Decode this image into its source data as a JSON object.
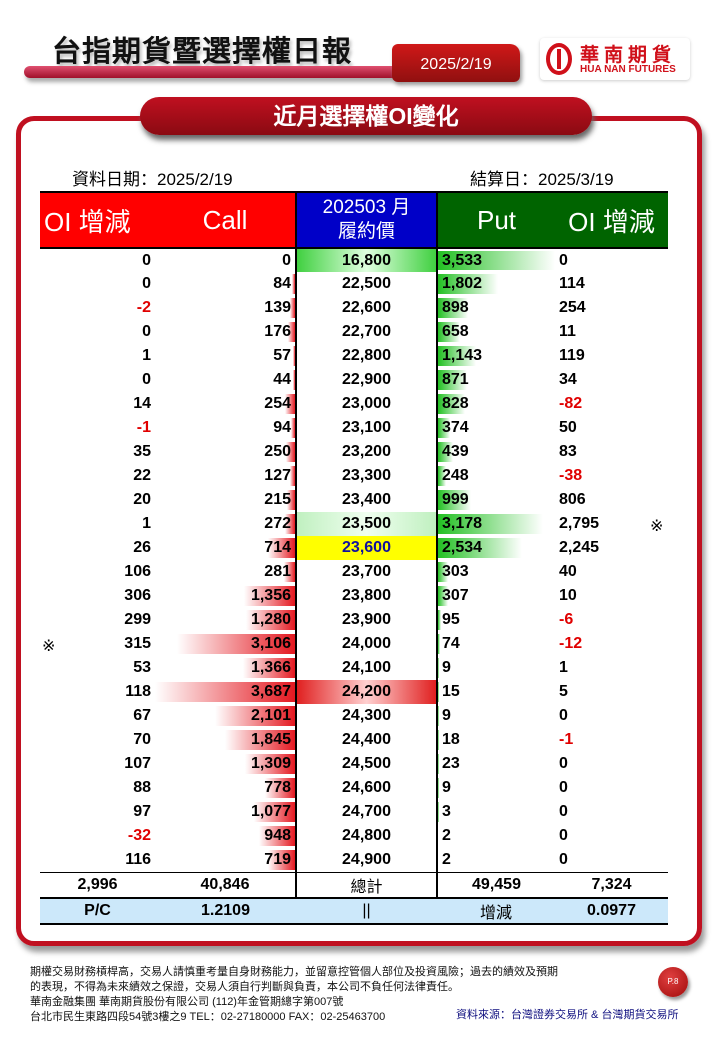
{
  "header": {
    "title": "台指期貨暨選擇權日報",
    "date": "2025/2/19",
    "logo_zh": "華南期貨",
    "logo_en": "HUA NAN FUTURES"
  },
  "section_title": "近月選擇權OI變化",
  "info": {
    "data_date": "資料日期：2025/2/19",
    "settle_date": "結算日：2025/3/19"
  },
  "table": {
    "headers": {
      "call_oi": "OI 增減",
      "call": "Call",
      "strike_1": "202503 月",
      "strike_2": "履約價",
      "put": "Put",
      "put_oi": "OI 增減"
    },
    "rows": [
      {
        "call_oi": "0",
        "call": "0",
        "strike": "16,800",
        "put": "3,533",
        "put_oi": "0",
        "hl": "green"
      },
      {
        "call_oi": "0",
        "call": "84",
        "strike": "22,500",
        "put": "1,802",
        "put_oi": "114"
      },
      {
        "call_oi": "-2",
        "call": "139",
        "strike": "22,600",
        "put": "898",
        "put_oi": "254"
      },
      {
        "call_oi": "0",
        "call": "176",
        "strike": "22,700",
        "put": "658",
        "put_oi": "11"
      },
      {
        "call_oi": "1",
        "call": "57",
        "strike": "22,800",
        "put": "1,143",
        "put_oi": "119"
      },
      {
        "call_oi": "0",
        "call": "44",
        "strike": "22,900",
        "put": "871",
        "put_oi": "34"
      },
      {
        "call_oi": "14",
        "call": "254",
        "strike": "23,000",
        "put": "828",
        "put_oi": "-82"
      },
      {
        "call_oi": "-1",
        "call": "94",
        "strike": "23,100",
        "put": "374",
        "put_oi": "50"
      },
      {
        "call_oi": "35",
        "call": "250",
        "strike": "23,200",
        "put": "439",
        "put_oi": "83"
      },
      {
        "call_oi": "22",
        "call": "127",
        "strike": "23,300",
        "put": "248",
        "put_oi": "-38"
      },
      {
        "call_oi": "20",
        "call": "215",
        "strike": "23,400",
        "put": "999",
        "put_oi": "806"
      },
      {
        "call_oi": "1",
        "call": "272",
        "strike": "23,500",
        "put": "3,178",
        "put_oi": "2,795",
        "hl": "lgreen",
        "mark_right": "※"
      },
      {
        "call_oi": "26",
        "call": "714",
        "strike": "23,600",
        "put": "2,534",
        "put_oi": "2,245",
        "hl": "yellow"
      },
      {
        "call_oi": "106",
        "call": "281",
        "strike": "23,700",
        "put": "303",
        "put_oi": "40"
      },
      {
        "call_oi": "306",
        "call": "1,356",
        "strike": "23,800",
        "put": "307",
        "put_oi": "10"
      },
      {
        "call_oi": "299",
        "call": "1,280",
        "strike": "23,900",
        "put": "95",
        "put_oi": "-6"
      },
      {
        "call_oi": "315",
        "call": "3,106",
        "strike": "24,000",
        "put": "74",
        "put_oi": "-12",
        "mark_left": "※"
      },
      {
        "call_oi": "53",
        "call": "1,366",
        "strike": "24,100",
        "put": "9",
        "put_oi": "1"
      },
      {
        "call_oi": "118",
        "call": "3,687",
        "strike": "24,200",
        "put": "15",
        "put_oi": "5",
        "hl": "red"
      },
      {
        "call_oi": "67",
        "call": "2,101",
        "strike": "24,300",
        "put": "9",
        "put_oi": "0"
      },
      {
        "call_oi": "70",
        "call": "1,845",
        "strike": "24,400",
        "put": "18",
        "put_oi": "-1"
      },
      {
        "call_oi": "107",
        "call": "1,309",
        "strike": "24,500",
        "put": "23",
        "put_oi": "0"
      },
      {
        "call_oi": "88",
        "call": "778",
        "strike": "24,600",
        "put": "9",
        "put_oi": "0"
      },
      {
        "call_oi": "97",
        "call": "1,077",
        "strike": "24,700",
        "put": "3",
        "put_oi": "0"
      },
      {
        "call_oi": "-32",
        "call": "948",
        "strike": "24,800",
        "put": "2",
        "put_oi": "0"
      },
      {
        "call_oi": "116",
        "call": "719",
        "strike": "24,900",
        "put": "2",
        "put_oi": "0"
      }
    ],
    "totals": {
      "call_oi": "2,996",
      "call": "40,846",
      "label": "總計",
      "put": "49,459",
      "put_oi": "7,324"
    },
    "pc": {
      "label": "P/C",
      "value": "1.2109",
      "sep": "||",
      "change_label": "增減",
      "change_value": "0.0977"
    }
  },
  "colors": {
    "call": "#ff0000",
    "strike": "#0000c8",
    "put": "#006400",
    "negative": "#e00000",
    "brand": "#c01020"
  },
  "footer": {
    "disclaimer": [
      "期權交易財務槓桿高，交易人請慎重考量自身財務能力，並留意控管個人部位及投資風險；過去的績效及預期",
      "的表現，不得為未來績效之保證，交易人須自行判斷與負責，本公司不負任何法律責任。",
      "華南金融集團 華南期貨股份有限公司 (112)年金管期總字第007號",
      "台北市民生東路四段54號3樓之9  TEL：02-27180000  FAX：02-25463700"
    ],
    "source": "資料來源：台灣證券交易所 & 台灣期貨交易所",
    "page": "P.8"
  }
}
